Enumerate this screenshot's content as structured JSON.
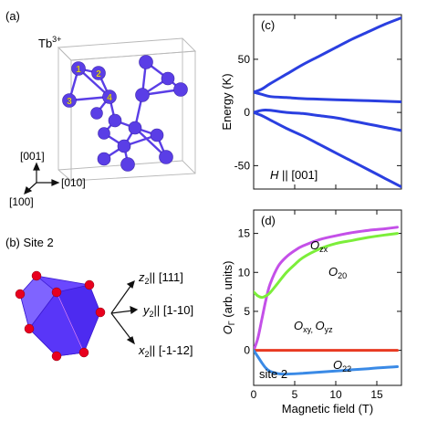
{
  "panels": {
    "a": {
      "label": "(a)",
      "ion": "Tb",
      "ion_charge": "3+",
      "site_labels": [
        "1",
        "2",
        "3",
        "4"
      ],
      "axes": {
        "z": "[001]",
        "y": "[010]",
        "x": "[100]"
      },
      "colors": {
        "atom": "#5a3ee6",
        "bond": "#5a3ee6",
        "cell": "#b8b8b8"
      }
    },
    "b": {
      "label": "(b) Site 2",
      "axes": [
        {
          "sym": "z",
          "sub": "2",
          "dir": "|| [111]"
        },
        {
          "sym": "y",
          "sub": "2",
          "dir": "|| [1-10]"
        },
        {
          "sym": "x",
          "sub": "2",
          "dir": "|| [-1-12]"
        }
      ],
      "colors": {
        "polyhedron": "#5530ff",
        "oxygen": "#e8001e"
      }
    }
  },
  "chart_data": [
    {
      "panel": "(c)",
      "type": "line",
      "ylabel": "Energy (K)",
      "xlim": [
        0,
        18
      ],
      "ylim": [
        -72,
        92
      ],
      "yticks": [
        -50,
        0,
        50
      ],
      "xticks": [
        0,
        5,
        10,
        15
      ],
      "annotation": {
        "italic": "H",
        "rest": " || [001]"
      },
      "color": "#2a3fe0",
      "series": [
        {
          "x": [
            0,
            1,
            2,
            4,
            6,
            8,
            10,
            12,
            14,
            16,
            18
          ],
          "y": [
            19,
            22,
            27,
            36,
            45,
            53,
            61,
            69,
            76,
            83,
            89
          ]
        },
        {
          "x": [
            0,
            1,
            2,
            4,
            6,
            8,
            10,
            12,
            14,
            16,
            18
          ],
          "y": [
            19,
            17,
            15,
            14,
            13,
            12.5,
            12,
            11.5,
            11,
            10.5,
            10
          ]
        },
        {
          "x": [
            0,
            1,
            2,
            4,
            6,
            8,
            10,
            12,
            14,
            16,
            18
          ],
          "y": [
            0,
            2,
            2,
            0,
            -1,
            -3,
            -5,
            -8,
            -11,
            -14,
            -17
          ]
        },
        {
          "x": [
            0,
            1,
            2,
            4,
            6,
            8,
            10,
            12,
            14,
            16,
            18
          ],
          "y": [
            0,
            -3,
            -7,
            -15,
            -22,
            -30,
            -38,
            -46,
            -54,
            -62,
            -70
          ]
        }
      ]
    },
    {
      "panel": "(d)",
      "type": "line",
      "ylabel": "O",
      "ylabel_sub": "Γ",
      "ylabel_rest": " (arb. units)",
      "xlabel": "Magnetic field (T)",
      "site_label": "site 2",
      "xlim": [
        0,
        18
      ],
      "ylim": [
        -4.5,
        18
      ],
      "yticks": [
        -5,
        0,
        5,
        10,
        15
      ],
      "xticks": [
        0,
        5,
        10,
        15
      ],
      "series": [
        {
          "label_main": "O",
          "label_sub": "zx",
          "color": "#c450e8",
          "x": [
            0,
            0.5,
            1,
            1.5,
            2,
            3,
            4,
            5,
            6,
            8,
            10,
            12,
            14,
            16,
            17.5
          ],
          "y": [
            0,
            1.5,
            4,
            6.5,
            8.5,
            10.8,
            12,
            12.8,
            13.4,
            14.2,
            14.7,
            15.1,
            15.4,
            15.6,
            15.8
          ]
        },
        {
          "label_main": "O",
          "label_sub": "20",
          "color": "#7cee3a",
          "x": [
            0,
            0.5,
            1,
            1.5,
            2,
            3,
            4,
            5,
            6,
            8,
            10,
            12,
            14,
            16,
            17.5
          ],
          "y": [
            7.5,
            7,
            6.8,
            7,
            7.4,
            8.7,
            10,
            11,
            11.9,
            13,
            13.7,
            14.1,
            14.5,
            14.8,
            15
          ]
        },
        {
          "label_main": "O",
          "label_sub": "xy, ",
          "label_main2": "O",
          "label_sub2": "yz",
          "color": "#e83a22",
          "x": [
            0,
            17.5
          ],
          "y": [
            0,
            0
          ]
        },
        {
          "label_main": "O",
          "label_sub": "22",
          "color": "#3a8ae6",
          "x": [
            0,
            0.5,
            1,
            1.5,
            2,
            3,
            4,
            6,
            8,
            10,
            12,
            14,
            16,
            17.5
          ],
          "y": [
            0,
            -0.8,
            -1.6,
            -2.3,
            -2.7,
            -3.0,
            -3.05,
            -2.95,
            -2.8,
            -2.65,
            -2.5,
            -2.35,
            -2.2,
            -2.1
          ]
        }
      ]
    }
  ]
}
